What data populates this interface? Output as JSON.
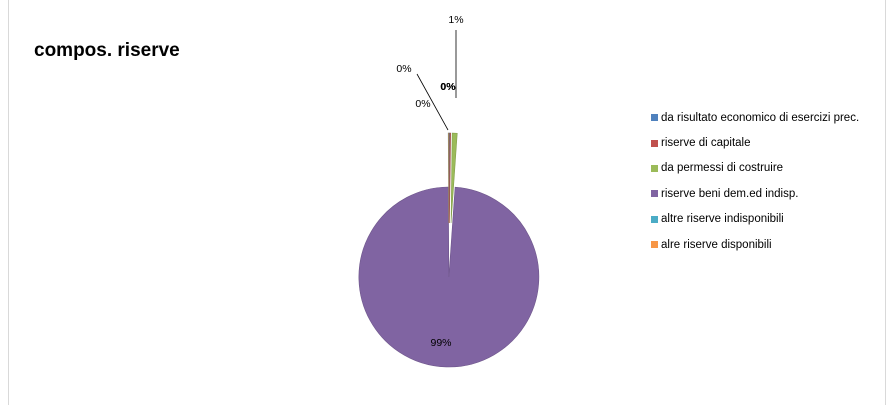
{
  "chart_data": {
    "type": "pie",
    "title": "compos. riserve",
    "categories": [
      "da risultato economico di esercizi prec.",
      "riserve di capitale",
      "da permessi di costruire",
      "riserve beni dem.ed indisp.",
      "altre riserve indisponibili",
      "alre riserve disponibili"
    ],
    "values": [
      0.1,
      0.1,
      0.9,
      98.8,
      0.05,
      0.05
    ],
    "data_labels": [
      "0%",
      "0%",
      "1%",
      "99%",
      "0%",
      "0%"
    ],
    "colors": [
      "#4f81bd",
      "#c0504d",
      "#9bbb59",
      "#8064a2",
      "#4bacc6",
      "#f79646"
    ],
    "legend_position": "right",
    "exploded": true
  }
}
